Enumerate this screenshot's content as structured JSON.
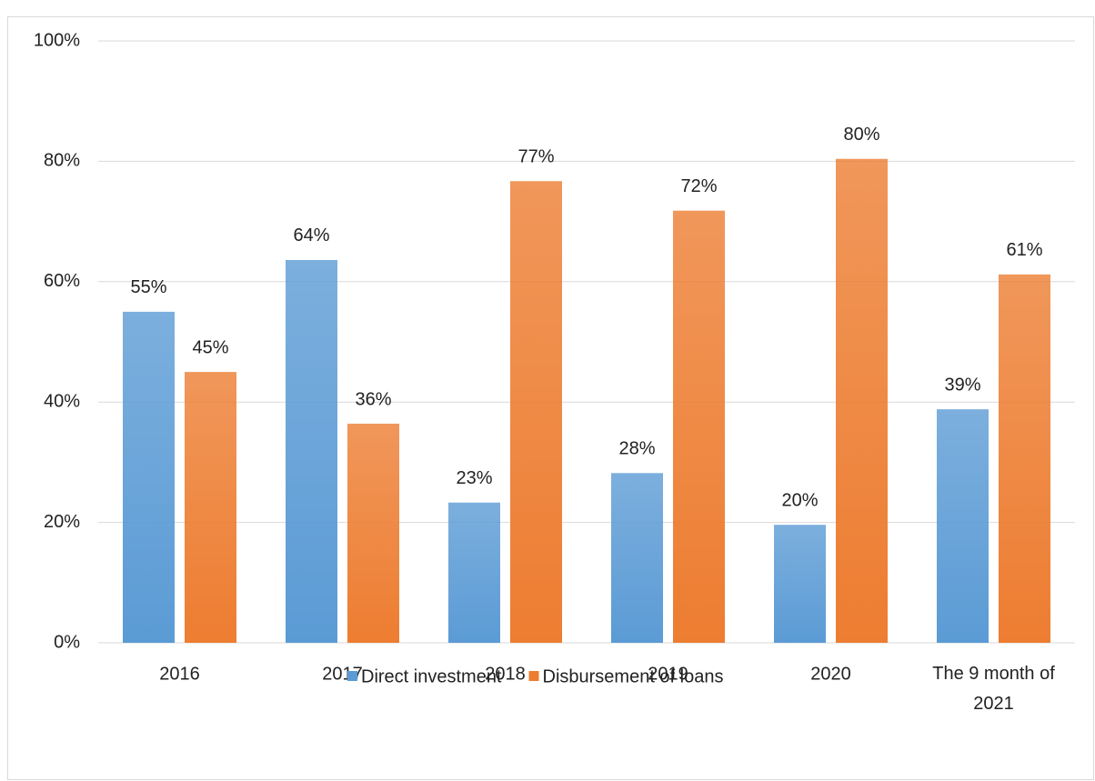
{
  "chart_data": {
    "type": "bar",
    "categories": [
      "2016",
      "2017",
      "2018",
      "2019",
      "2020",
      "The 9 month of 2021"
    ],
    "series": [
      {
        "name": "Direct investment",
        "color": "#5b9bd5",
        "values": [
          55,
          63.6,
          23.3,
          28.2,
          19.6,
          38.8
        ],
        "value_labels": [
          "55%",
          "64%",
          "23%",
          "28%",
          "20%",
          "39%"
        ]
      },
      {
        "name": "Disbursement of loans",
        "color": "#ed7d31",
        "values": [
          45,
          36.4,
          76.7,
          71.8,
          80.4,
          61.2
        ],
        "value_labels": [
          "45%",
          "36%",
          "77%",
          "72%",
          "80%",
          "61%"
        ]
      }
    ],
    "ylim": [
      0,
      100
    ],
    "yticks": [
      {
        "value": 0,
        "label": "0%"
      },
      {
        "value": 20,
        "label": "20%"
      },
      {
        "value": 40,
        "label": "40%"
      },
      {
        "value": 60,
        "label": "60%"
      },
      {
        "value": 80,
        "label": "80%"
      },
      {
        "value": 100,
        "label": "100%"
      }
    ],
    "grid": true,
    "legend": "bottom"
  }
}
